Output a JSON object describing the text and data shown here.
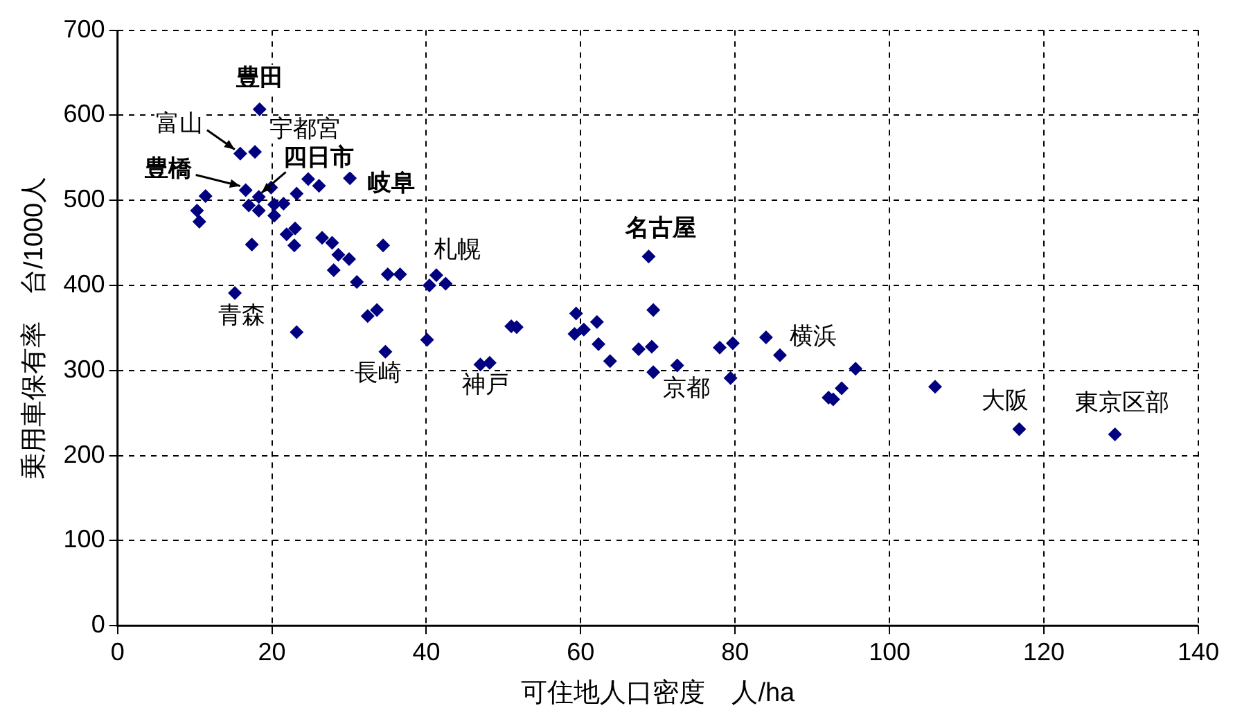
{
  "chart_data": {
    "type": "scatter",
    "xlabel": "可住地人口密度　人/ha",
    "ylabel": "乗用車保有率　台/1000人",
    "xlim": [
      0,
      140
    ],
    "xticks": [
      0,
      20,
      40,
      60,
      80,
      100,
      120,
      140
    ],
    "ylim": [
      0,
      700
    ],
    "yticks": [
      0,
      100,
      200,
      300,
      400,
      500,
      600,
      700
    ],
    "grid": true,
    "legend": false,
    "marker": "diamond",
    "series": [
      {
        "color": "#000080",
        "x": [
          18.4,
          15.9,
          17.8,
          11.4,
          16.6,
          18.3,
          19.9,
          23.2,
          24.7,
          26.1,
          30.1,
          10.3,
          10.6,
          17.0,
          18.3,
          20.3,
          21.5,
          20.3,
          17.4,
          21.9,
          23.0,
          22.9,
          26.5,
          27.8,
          28.6,
          30.0,
          28.0,
          31.0,
          34.4,
          35.0,
          36.6,
          41.3,
          40.4,
          42.5,
          15.2,
          32.4,
          33.6,
          23.2,
          40.1,
          34.7,
          68.8,
          59.4,
          69.4,
          62.1,
          51.0,
          51.7,
          59.2,
          60.4,
          62.3,
          63.8,
          67.5,
          69.2,
          69.4,
          72.5,
          78.0,
          79.7,
          79.4,
          84.0,
          85.8,
          47.0,
          48.2,
          95.6,
          93.8,
          92.1,
          92.7,
          105.9,
          116.8,
          129.2
        ],
        "values": [
          607,
          555,
          557,
          505,
          512,
          504,
          515,
          508,
          525,
          517,
          526,
          488,
          475,
          494,
          488,
          495,
          496,
          482,
          448,
          460,
          467,
          447,
          456,
          450,
          436,
          431,
          418,
          404,
          447,
          413,
          413,
          412,
          400,
          402,
          391,
          364,
          371,
          345,
          336,
          322,
          434,
          367,
          371,
          357,
          352,
          351,
          343,
          348,
          331,
          311,
          325,
          328,
          298,
          306,
          327,
          332,
          291,
          339,
          318,
          307,
          309,
          302,
          279,
          268,
          266,
          281,
          231,
          225
        ]
      }
    ],
    "annotations": [
      {
        "text": "豊田",
        "x": 18.4,
        "y": 607
      },
      {
        "text": "富山",
        "x": 15.9,
        "y": 555
      },
      {
        "text": "宇都宮",
        "x": 17.8,
        "y": 557
      },
      {
        "text": "豊橋",
        "x": 16.6,
        "y": 512
      },
      {
        "text": "四日市",
        "x": 18.3,
        "y": 504
      },
      {
        "text": "岐阜",
        "x": 30.1,
        "y": 526
      },
      {
        "text": "札幌",
        "x": 41.3,
        "y": 412
      },
      {
        "text": "青森",
        "x": 15.2,
        "y": 391
      },
      {
        "text": "長崎",
        "x": 34.7,
        "y": 322
      },
      {
        "text": "神戸",
        "x": 47.0,
        "y": 307
      },
      {
        "text": "名古屋",
        "x": 68.8,
        "y": 434
      },
      {
        "text": "京都",
        "x": 69.4,
        "y": 298
      },
      {
        "text": "横浜",
        "x": 84.0,
        "y": 339
      },
      {
        "text": "大阪",
        "x": 116.8,
        "y": 231
      },
      {
        "text": "東京区部",
        "x": 129.2,
        "y": 225
      }
    ]
  }
}
